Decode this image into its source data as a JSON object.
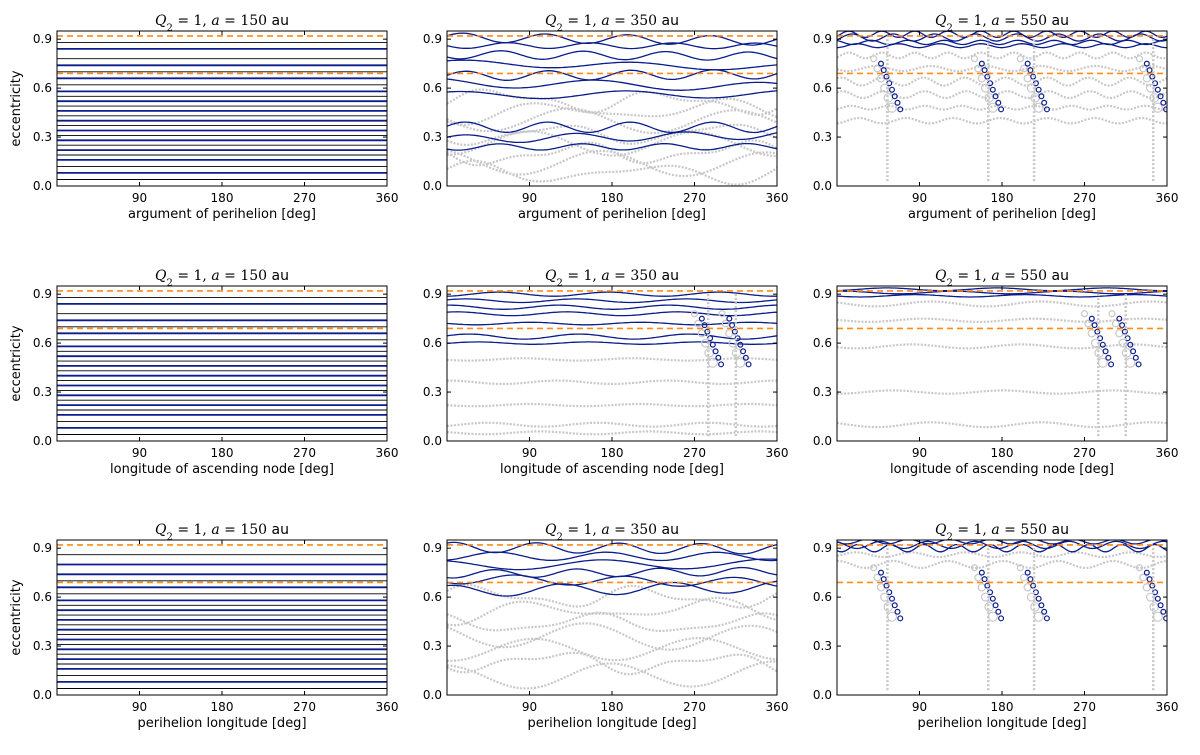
{
  "figure": {
    "background": "#ffffff"
  },
  "styles": {
    "prograde_color": "#0b1d8c",
    "background_color": "#c8c8c8",
    "threshold_color": "#ff8c1a"
  },
  "thresholds": {
    "e_high": 0.92,
    "e_low": 0.69,
    "style": "dashed"
  },
  "chart_data": [
    {
      "id": "p11",
      "type": "line",
      "title_q": "Q",
      "title_sub": "2",
      "title_eq": " = 1, ",
      "title_a": "a",
      "title_eq2": " = 150 ",
      "title_unit": "au",
      "xlabel": "argument of perihelion [deg]",
      "ylabel": "eccentricity",
      "xlim": [
        0,
        360
      ],
      "ylim": [
        0,
        0.95
      ],
      "xticks": [
        "90",
        "180",
        "270",
        "360"
      ],
      "yticks": [
        "0.0",
        "0.3",
        "0.6",
        "0.9"
      ],
      "regime": "flat",
      "blue_levels": [
        0.08,
        0.16,
        0.22,
        0.28,
        0.34,
        0.4,
        0.46,
        0.52,
        0.58,
        0.66,
        0.74,
        0.84
      ],
      "black_levels": [
        0.04,
        0.12,
        0.19,
        0.25,
        0.31,
        0.37,
        0.43,
        0.49,
        0.55,
        0.62,
        0.7,
        0.78,
        0.88
      ],
      "grey_levels": []
    },
    {
      "id": "p12",
      "type": "line",
      "title_q": "Q",
      "title_sub": "2",
      "title_eq": " = 1, ",
      "title_a": "a",
      "title_eq2": " = 350 ",
      "title_unit": "au",
      "xlabel": "argument of perihelion [deg]",
      "ylabel": "",
      "xlim": [
        0,
        360
      ],
      "ylim": [
        0,
        0.95
      ],
      "xticks": [
        "90",
        "180",
        "270",
        "360"
      ],
      "yticks": [
        "0.0",
        "0.3",
        "0.6",
        "0.9"
      ],
      "regime": "wavy",
      "blue_levels": [
        0.56,
        0.62,
        0.68,
        0.74,
        0.8,
        0.86,
        0.9,
        0.36,
        0.3,
        0.24
      ],
      "black_levels": [],
      "grey_levels": [
        0.08,
        0.14,
        0.2,
        0.26,
        0.32,
        0.4,
        0.46,
        0.52
      ]
    },
    {
      "id": "p13",
      "type": "line",
      "title_q": "Q",
      "title_sub": "2",
      "title_eq": " = 1, ",
      "title_a": "a",
      "title_eq2": " = 550 ",
      "title_unit": "au",
      "xlabel": "argument of perihelion [deg]",
      "ylabel": "",
      "xlim": [
        0,
        360
      ],
      "ylim": [
        0,
        0.95
      ],
      "xticks": [
        "90",
        "180",
        "270",
        "360"
      ],
      "yticks": [
        "0.0",
        "0.3",
        "0.6",
        "0.9"
      ],
      "regime": "chaotic",
      "blue_levels": [
        0.88,
        0.91,
        0.93,
        0.86
      ],
      "black_levels": [],
      "grey_levels": [
        0.8,
        0.72,
        0.64,
        0.56,
        0.48,
        0.4
      ]
    },
    {
      "id": "p21",
      "type": "line",
      "title_q": "Q",
      "title_sub": "2",
      "title_eq": " = 1, ",
      "title_a": "a",
      "title_eq2": " = 150 ",
      "title_unit": "au",
      "xlabel": "longitude of ascending node [deg]",
      "ylabel": "eccentricity",
      "xlim": [
        0,
        360
      ],
      "ylim": [
        0,
        0.95
      ],
      "xticks": [
        "90",
        "180",
        "270",
        "360"
      ],
      "yticks": [
        "0.0",
        "0.3",
        "0.6",
        "0.9"
      ],
      "regime": "flat",
      "blue_levels": [
        0.08,
        0.16,
        0.22,
        0.28,
        0.34,
        0.4,
        0.46,
        0.52,
        0.58,
        0.66,
        0.74,
        0.84
      ],
      "black_levels": [
        0.04,
        0.12,
        0.19,
        0.25,
        0.31,
        0.37,
        0.43,
        0.49,
        0.55,
        0.62,
        0.7,
        0.78,
        0.88
      ],
      "grey_levels": []
    },
    {
      "id": "p22",
      "type": "line",
      "title_q": "Q",
      "title_sub": "2",
      "title_eq": " = 1, ",
      "title_a": "a",
      "title_eq2": " = 350 ",
      "title_unit": "au",
      "xlabel": "longitude of ascending node [deg]",
      "ylabel": "",
      "xlim": [
        0,
        360
      ],
      "ylim": [
        0,
        0.95
      ],
      "xticks": [
        "90",
        "180",
        "270",
        "360"
      ],
      "yticks": [
        "0.0",
        "0.3",
        "0.6",
        "0.9"
      ],
      "regime": "sparse",
      "blue_levels": [
        0.9,
        0.86,
        0.82,
        0.78,
        0.72,
        0.64,
        0.6
      ],
      "black_levels": [],
      "grey_levels": [
        0.5,
        0.36,
        0.22,
        0.1,
        0.05
      ]
    },
    {
      "id": "p23",
      "type": "line",
      "title_q": "Q",
      "title_sub": "2",
      "title_eq": " = 1, ",
      "title_a": "a",
      "title_eq2": " = 550 ",
      "title_unit": "au",
      "xlabel": "longitude of ascending node [deg]",
      "ylabel": "",
      "xlim": [
        0,
        360
      ],
      "ylim": [
        0,
        0.95
      ],
      "xticks": [
        "90",
        "180",
        "270",
        "360"
      ],
      "yticks": [
        "0.0",
        "0.3",
        "0.6",
        "0.9"
      ],
      "regime": "sparse",
      "blue_levels": [
        0.93,
        0.91,
        0.89
      ],
      "black_levels": [],
      "grey_levels": [
        0.84,
        0.74,
        0.58,
        0.3,
        0.1
      ]
    },
    {
      "id": "p31",
      "type": "line",
      "title_q": "Q",
      "title_sub": "2",
      "title_eq": " = 1, ",
      "title_a": "a",
      "title_eq2": " = 150 ",
      "title_unit": "au",
      "xlabel": "perihelion longitude [deg]",
      "ylabel": "eccentricity",
      "xlim": [
        0,
        360
      ],
      "ylim": [
        0,
        0.95
      ],
      "xticks": [
        "90",
        "180",
        "270",
        "360"
      ],
      "yticks": [
        "0.0",
        "0.3",
        "0.6",
        "0.9"
      ],
      "regime": "flat",
      "blue_levels": [
        0.08,
        0.16,
        0.22,
        0.28,
        0.34,
        0.4,
        0.46,
        0.52,
        0.58,
        0.66,
        0.74,
        0.8
      ],
      "black_levels": [
        0.04,
        0.12,
        0.19,
        0.25,
        0.31,
        0.37,
        0.43,
        0.49,
        0.55,
        0.62,
        0.7,
        0.86
      ],
      "grey_levels": []
    },
    {
      "id": "p32",
      "type": "line",
      "title_q": "Q",
      "title_sub": "2",
      "title_eq": " = 1, ",
      "title_a": "a",
      "title_eq2": " = 350 ",
      "title_unit": "au",
      "xlabel": "perihelion longitude [deg]",
      "ylabel": "",
      "xlim": [
        0,
        360
      ],
      "ylim": [
        0,
        0.95
      ],
      "xticks": [
        "90",
        "180",
        "270",
        "360"
      ],
      "yticks": [
        "0.0",
        "0.3",
        "0.6",
        "0.9"
      ],
      "regime": "wavy",
      "blue_levels": [
        0.9,
        0.85,
        0.8,
        0.75,
        0.7,
        0.65
      ],
      "black_levels": [],
      "grey_levels": [
        0.6,
        0.52,
        0.44,
        0.36,
        0.28,
        0.2,
        0.12
      ]
    },
    {
      "id": "p33",
      "type": "line",
      "title_q": "Q",
      "title_sub": "2",
      "title_eq": " = 1, ",
      "title_a": "a",
      "title_eq2": " = 550 ",
      "title_unit": "au",
      "xlabel": "perihelion longitude [deg]",
      "ylabel": "",
      "xlim": [
        0,
        360
      ],
      "ylim": [
        0,
        0.95
      ],
      "xticks": [
        "90",
        "180",
        "270",
        "360"
      ],
      "yticks": [
        "0.0",
        "0.3",
        "0.6",
        "0.9"
      ],
      "regime": "chaotic",
      "blue_levels": [
        0.92,
        0.9,
        0.94
      ],
      "black_levels": [],
      "grey_levels": [
        0.86,
        0.8
      ]
    }
  ]
}
